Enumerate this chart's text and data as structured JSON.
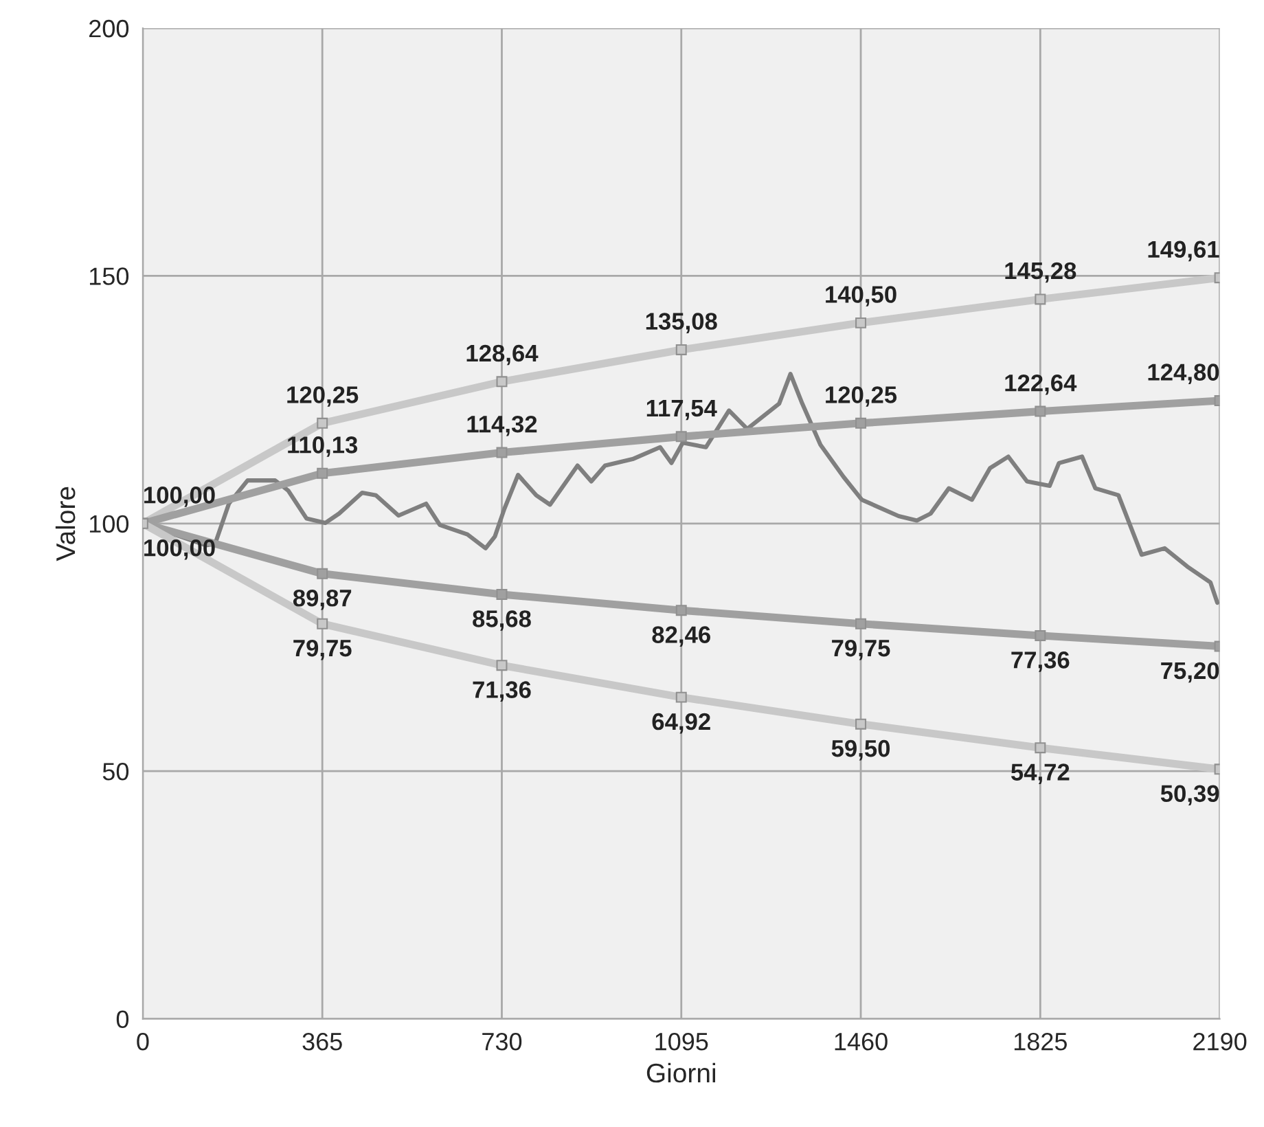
{
  "chart_data": {
    "type": "line",
    "xlabel": "Giorni",
    "ylabel": "Valore",
    "xlim": [
      0,
      2190
    ],
    "ylim": [
      0,
      200
    ],
    "xticks": [
      0,
      365,
      730,
      1095,
      1460,
      1825,
      2190
    ],
    "yticks": [
      0,
      50,
      100,
      150,
      200
    ],
    "grid": true,
    "line_style": "solid",
    "series": [
      {
        "color": "#7f7f7f",
        "marker": "none",
        "x": [
          0,
          7,
          129,
          147,
          175,
          213,
          269,
          296,
          333,
          371,
          399,
          446,
          474,
          520,
          576,
          604,
          660,
          697,
          716,
          735,
          763,
          800,
          828,
          884,
          912,
          940,
          996,
          1052,
          1075,
          1098,
          1145,
          1192,
          1229,
          1294,
          1317,
          1341,
          1378,
          1425,
          1462,
          1537,
          1574,
          1602,
          1639,
          1686,
          1723,
          1760,
          1798,
          1844,
          1863,
          1910,
          1937,
          1984,
          2031,
          2078,
          2124,
          2171,
          2185
        ],
        "values": [
          100,
          99.7,
          95.6,
          95.9,
          104,
          108.7,
          108.7,
          106.6,
          101,
          100.1,
          102,
          106.2,
          105.7,
          101.6,
          104,
          99.7,
          97.8,
          95,
          97.4,
          102.9,
          109.8,
          105.7,
          103.8,
          111.7,
          108.5,
          111.7,
          113,
          115.4,
          112.2,
          116.3,
          115.4,
          122.8,
          119.1,
          124.2,
          130.2,
          124.2,
          115.9,
          109.4,
          104.8,
          101.5,
          100.6,
          102,
          107.1,
          104.8,
          111.2,
          113.5,
          108.5,
          107.6,
          112.2,
          113.5,
          107.1,
          105.7,
          93.7,
          95,
          91.3,
          88.1,
          84
        ]
      },
      {
        "color": "#c8c8c8",
        "marker": "square",
        "x": [
          0,
          365,
          730,
          1095,
          1460,
          1825,
          2190
        ],
        "values": [
          100,
          120.25,
          128.64,
          135.08,
          140.5,
          145.28,
          149.61
        ],
        "value_labels": [
          "100,00",
          "120,25",
          "128,64",
          "135,08",
          "140,50",
          "145,28",
          "149,61"
        ]
      },
      {
        "color": "#a0a0a0",
        "marker": "square",
        "x": [
          0,
          365,
          730,
          1095,
          1460,
          1825,
          2190
        ],
        "values": [
          100,
          110.13,
          114.32,
          117.54,
          120.25,
          122.64,
          124.8
        ],
        "value_labels": [
          null,
          "110,13",
          "114,32",
          "117,54",
          "120,25",
          "122,64",
          "124,80"
        ]
      },
      {
        "color": "#a0a0a0",
        "marker": "square",
        "x": [
          0,
          365,
          730,
          1095,
          1460,
          1825,
          2190
        ],
        "values": [
          100,
          89.87,
          85.68,
          82.46,
          79.75,
          77.36,
          75.2
        ],
        "value_labels": [
          null,
          "89,87",
          "85,68",
          "82,46",
          "79,75",
          "77,36",
          "75,20"
        ]
      },
      {
        "color": "#c8c8c8",
        "marker": "square",
        "x": [
          0,
          365,
          730,
          1095,
          1460,
          1825,
          2190
        ],
        "values": [
          100,
          79.75,
          71.36,
          64.92,
          59.5,
          54.72,
          50.39
        ],
        "value_labels": [
          "100,00",
          "79,75",
          "71,36",
          "64,92",
          "59,50",
          "54,72",
          "50,39"
        ]
      }
    ]
  }
}
